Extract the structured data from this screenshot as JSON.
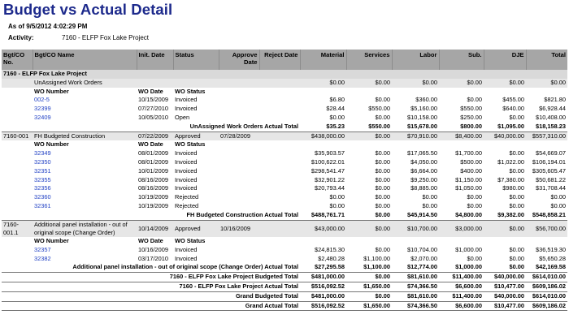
{
  "report": {
    "title": "Budget vs Actual Detail",
    "as_of_label": "As of",
    "as_of_value": "9/5/2012 4:02:29 PM",
    "activity_label": "Activity:",
    "activity_value": "7160 - ELFP Fox Lake Project"
  },
  "columns": [
    "Bgt/CO No.",
    "Bgt/CO Name",
    "Init. Date",
    "Status",
    "Approve Date",
    "Reject Date",
    "Material",
    "Services",
    "Labor",
    "Sub.",
    "DJE",
    "Total"
  ],
  "project_header": "7160 - ELFP Fox Lake Project",
  "wo_sub_header": {
    "number": "WO Number",
    "date": "WO Date",
    "status": "WO Status"
  },
  "groups": [
    {
      "no": "",
      "name": "UnAssigned Work Orders",
      "init": "",
      "status": "",
      "approve": "",
      "reject": "",
      "material": "$0.00",
      "services": "$0.00",
      "labor": "$0.00",
      "sub": "$0.00",
      "dje": "$0.00",
      "total": "$0.00",
      "rows": [
        {
          "wo": "002-5",
          "date": "10/15/2009",
          "status": "Invoiced",
          "material": "$6.80",
          "services": "$0.00",
          "labor": "$360.00",
          "sub": "$0.00",
          "dje": "$455.00",
          "total": "$821.80"
        },
        {
          "wo": "32399",
          "date": "07/27/2010",
          "status": "Invoiced",
          "material": "$28.44",
          "services": "$550.00",
          "labor": "$5,160.00",
          "sub": "$550.00",
          "dje": "$640.00",
          "total": "$6,928.44"
        },
        {
          "wo": "32409",
          "date": "10/05/2010",
          "status": "Open",
          "material": "$0.00",
          "services": "$0.00",
          "labor": "$10,158.00",
          "sub": "$250.00",
          "dje": "$0.00",
          "total": "$10,408.00"
        }
      ],
      "actual_label": "UnAssigned Work Orders Actual Total",
      "actual": {
        "material": "$35.23",
        "services": "$550.00",
        "labor": "$15,678.00",
        "sub": "$800.00",
        "dje": "$1,095.00",
        "total": "$18,158.23"
      }
    },
    {
      "no": "7160-001",
      "name": "FH Budgeted Construction",
      "init": "07/22/2009",
      "status": "Approved",
      "approve": "07/28/2009",
      "reject": "",
      "material": "$438,000.00",
      "services": "$0.00",
      "labor": "$70,910.00",
      "sub": "$8,400.00",
      "dje": "$40,000.00",
      "total": "$557,310.00",
      "rows": [
        {
          "wo": "32349",
          "date": "08/01/2009",
          "status": "Invoiced",
          "material": "$35,903.57",
          "services": "$0.00",
          "labor": "$17,065.50",
          "sub": "$1,700.00",
          "dje": "$0.00",
          "total": "$54,669.07"
        },
        {
          "wo": "32350",
          "date": "08/01/2009",
          "status": "Invoiced",
          "material": "$100,622.01",
          "services": "$0.00",
          "labor": "$4,050.00",
          "sub": "$500.00",
          "dje": "$1,022.00",
          "total": "$106,194.01"
        },
        {
          "wo": "32351",
          "date": "10/01/2009",
          "status": "Invoiced",
          "material": "$298,541.47",
          "services": "$0.00",
          "labor": "$6,664.00",
          "sub": "$400.00",
          "dje": "$0.00",
          "total": "$305,605.47"
        },
        {
          "wo": "32355",
          "date": "08/16/2009",
          "status": "Invoiced",
          "material": "$32,901.22",
          "services": "$0.00",
          "labor": "$9,250.00",
          "sub": "$1,150.00",
          "dje": "$7,380.00",
          "total": "$50,681.22"
        },
        {
          "wo": "32356",
          "date": "08/16/2009",
          "status": "Invoiced",
          "material": "$20,793.44",
          "services": "$0.00",
          "labor": "$8,885.00",
          "sub": "$1,050.00",
          "dje": "$980.00",
          "total": "$31,708.44"
        },
        {
          "wo": "32360",
          "date": "10/19/2009",
          "status": "Rejected",
          "material": "$0.00",
          "services": "$0.00",
          "labor": "$0.00",
          "sub": "$0.00",
          "dje": "$0.00",
          "total": "$0.00"
        },
        {
          "wo": "32361",
          "date": "10/19/2009",
          "status": "Rejected",
          "material": "$0.00",
          "services": "$0.00",
          "labor": "$0.00",
          "sub": "$0.00",
          "dje": "$0.00",
          "total": "$0.00"
        }
      ],
      "actual_label": "FH Budgeted Construction Actual Total",
      "actual": {
        "material": "$488,761.71",
        "services": "$0.00",
        "labor": "$45,914.50",
        "sub": "$4,800.00",
        "dje": "$9,382.00",
        "total": "$548,858.21"
      }
    },
    {
      "no": "7160-001.1",
      "name": "Additional panel installation - out of original scope (Change Order)",
      "init": "10/14/2009",
      "status": "Approved",
      "approve": "10/16/2009",
      "reject": "",
      "material": "$43,000.00",
      "services": "$0.00",
      "labor": "$10,700.00",
      "sub": "$3,000.00",
      "dje": "$0.00",
      "total": "$56,700.00",
      "rows": [
        {
          "wo": "32357",
          "date": "10/16/2009",
          "status": "Invoiced",
          "material": "$24,815.30",
          "services": "$0.00",
          "labor": "$10,704.00",
          "sub": "$1,000.00",
          "dje": "$0.00",
          "total": "$36,519.30"
        },
        {
          "wo": "32382",
          "date": "03/17/2010",
          "status": "Invoiced",
          "material": "$2,480.28",
          "services": "$1,100.00",
          "labor": "$2,070.00",
          "sub": "$0.00",
          "dje": "$0.00",
          "total": "$5,650.28"
        }
      ],
      "actual_label": "Additional panel installation - out of original scope (Change Order) Actual Total",
      "actual": {
        "material": "$27,295.58",
        "services": "$1,100.00",
        "labor": "$12,774.00",
        "sub": "$1,000.00",
        "dje": "$0.00",
        "total": "$42,169.58"
      }
    }
  ],
  "totals": [
    {
      "label": "7160 - ELFP Fox Lake Project Budgeted Total",
      "material": "$481,000.00",
      "services": "$0.00",
      "labor": "$81,610.00",
      "sub": "$11,400.00",
      "dje": "$40,000.00",
      "total": "$614,010.00"
    },
    {
      "label": "7160 - ELFP Fox Lake Project Actual Total",
      "material": "$516,092.52",
      "services": "$1,650.00",
      "labor": "$74,366.50",
      "sub": "$6,600.00",
      "dje": "$10,477.00",
      "total": "$609,186.02"
    },
    {
      "label": "Grand Budgeted Total",
      "material": "$481,000.00",
      "services": "$0.00",
      "labor": "$81,610.00",
      "sub": "$11,400.00",
      "dje": "$40,000.00",
      "total": "$614,010.00"
    },
    {
      "label": "Grand Actual Total",
      "material": "$516,092.52",
      "services": "$1,650.00",
      "labor": "$74,366.50",
      "sub": "$6,600.00",
      "dje": "$10,477.00",
      "total": "$609,186.02"
    }
  ]
}
